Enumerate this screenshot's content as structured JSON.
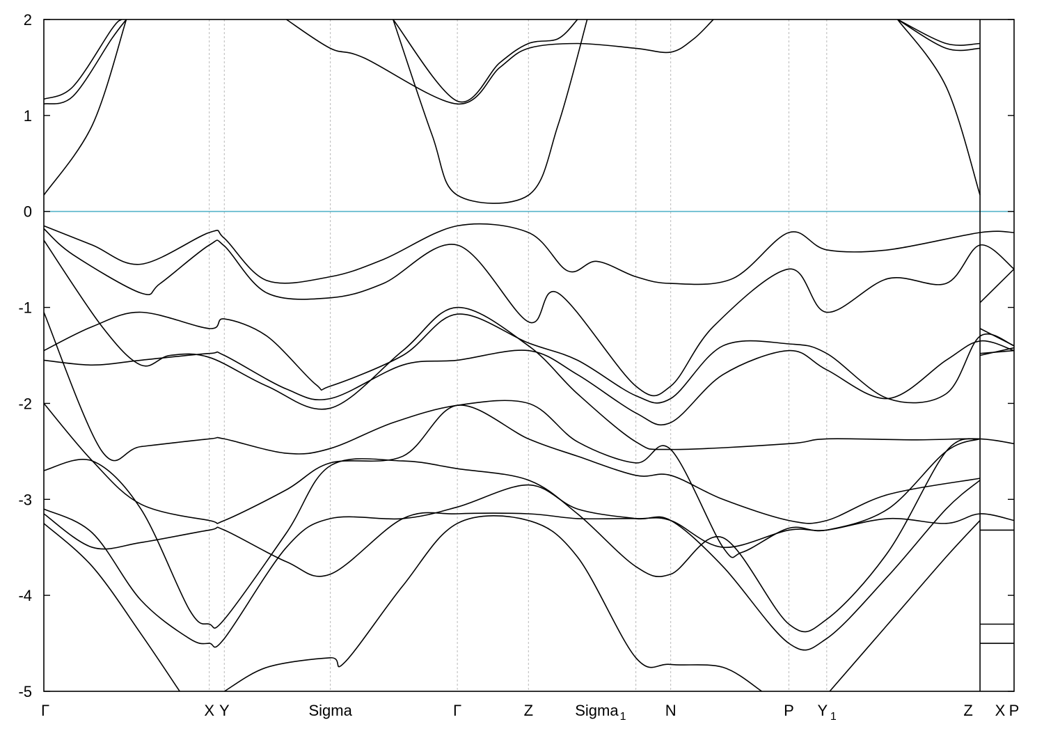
{
  "chart_data": {
    "type": "line",
    "title": "",
    "xlabel": "",
    "ylabel": "",
    "ylim": [
      -5,
      2
    ],
    "yticks": [
      2,
      1,
      0,
      -1,
      -2,
      -3,
      -4,
      -5
    ],
    "ytick_labels": [
      "2",
      "1",
      "0",
      "-1",
      "-2",
      "-3",
      "-4",
      "-5"
    ],
    "xlim": [
      0,
      1.0
    ],
    "x_high_symmetry_points": [
      {
        "label": "Γ",
        "sub": "",
        "x": 0.0
      },
      {
        "label": "X",
        "sub": "",
        "x": 0.1705
      },
      {
        "label": "Y",
        "sub": "",
        "x": 0.186
      },
      {
        "label": "Sigma",
        "sub": "",
        "x": 0.2953
      },
      {
        "label": "Γ",
        "sub": "",
        "x": 0.4262
      },
      {
        "label": "Z",
        "sub": "",
        "x": 0.4995
      },
      {
        "label": "Sigma",
        "sub": "1",
        "x": 0.6102
      },
      {
        "label": "N",
        "sub": "",
        "x": 0.6461
      },
      {
        "label": "P",
        "sub": "",
        "x": 0.7679
      },
      {
        "label": "Y",
        "sub": "1",
        "x": 0.8069
      },
      {
        "label": "Z",
        "sub": "",
        "x": 0.9649
      },
      {
        "label": "X",
        "sub": "",
        "x": 1.0
      },
      {
        "label": "P",
        "sub": "",
        "x": 1.0
      }
    ],
    "discontinuity_x": 0.9649,
    "fermi_level": 0,
    "grid": "vertical dashed lines at high-symmetry points",
    "legend": "none",
    "colors": {
      "bands": "#000000",
      "fermi": "#56b4c9"
    },
    "series": [
      {
        "values": [
          [
            0.0,
            -0.15
          ],
          [
            0.05,
            -0.35
          ],
          [
            0.1,
            -0.55
          ],
          [
            0.1705,
            -0.22
          ],
          [
            0.186,
            -0.28
          ],
          [
            0.23,
            -0.72
          ],
          [
            0.2953,
            -0.68
          ],
          [
            0.35,
            -0.5
          ],
          [
            0.4262,
            -0.15
          ],
          [
            0.4995,
            -0.22
          ],
          [
            0.54,
            -0.62
          ],
          [
            0.57,
            -0.52
          ],
          [
            0.6102,
            -0.68
          ],
          [
            0.6461,
            -0.75
          ],
          [
            0.71,
            -0.7
          ],
          [
            0.7679,
            -0.22
          ],
          [
            0.8069,
            -0.4
          ],
          [
            0.87,
            -0.4
          ],
          [
            0.9649,
            -0.22
          ],
          [
            1.0,
            -0.22
          ]
        ]
      },
      {
        "values": [
          [
            0.0,
            -0.18
          ],
          [
            0.03,
            -0.45
          ],
          [
            0.1,
            -0.85
          ],
          [
            0.12,
            -0.75
          ],
          [
            0.1705,
            -0.35
          ],
          [
            0.186,
            -0.36
          ],
          [
            0.23,
            -0.85
          ],
          [
            0.2953,
            -0.9
          ],
          [
            0.35,
            -0.75
          ],
          [
            0.4262,
            -0.35
          ],
          [
            0.4995,
            -1.15
          ],
          [
            0.53,
            -0.85
          ],
          [
            0.6102,
            -1.82
          ],
          [
            0.6461,
            -1.82
          ],
          [
            0.69,
            -1.2
          ],
          [
            0.7679,
            -0.6
          ],
          [
            0.8069,
            -1.05
          ],
          [
            0.87,
            -0.7
          ],
          [
            0.93,
            -0.75
          ],
          [
            0.9649,
            -0.35
          ],
          [
            1.0,
            -0.6
          ]
        ]
      },
      {
        "values": [
          [
            0.0,
            -0.3
          ],
          [
            0.06,
            -1.2
          ],
          [
            0.1,
            -1.6
          ],
          [
            0.13,
            -1.5
          ],
          [
            0.1705,
            -1.52
          ],
          [
            0.23,
            -1.82
          ],
          [
            0.2953,
            -2.05
          ],
          [
            0.37,
            -1.45
          ],
          [
            0.4262,
            -1.0
          ],
          [
            0.4995,
            -1.4
          ],
          [
            0.55,
            -1.9
          ],
          [
            0.6102,
            -2.4
          ],
          [
            0.6461,
            -2.48
          ],
          [
            0.7679,
            -2.42
          ],
          [
            0.8069,
            -2.37
          ],
          [
            0.9,
            -2.38
          ],
          [
            0.9649,
            -2.37
          ],
          [
            1.0,
            -2.42
          ]
        ]
      },
      {
        "values": [
          [
            0.0,
            -1.05
          ],
          [
            0.06,
            -2.5
          ],
          [
            0.1,
            -2.45
          ],
          [
            0.1705,
            -2.37
          ],
          [
            0.186,
            -2.37
          ],
          [
            0.25,
            -2.52
          ],
          [
            0.2953,
            -2.47
          ],
          [
            0.36,
            -2.2
          ],
          [
            0.4262,
            -2.02
          ],
          [
            0.4995,
            -2.0
          ],
          [
            0.55,
            -2.4
          ],
          [
            0.6102,
            -2.62
          ],
          [
            0.6461,
            -2.48
          ],
          [
            0.7,
            -3.5
          ],
          [
            0.72,
            -3.55
          ],
          [
            0.7679,
            -3.3
          ],
          [
            0.8069,
            -3.32
          ],
          [
            0.87,
            -3.1
          ],
          [
            0.93,
            -2.5
          ],
          [
            0.9649,
            -2.37
          ]
        ]
      },
      {
        "values": [
          [
            0.0,
            -1.45
          ],
          [
            0.05,
            -1.2
          ],
          [
            0.1,
            -1.05
          ],
          [
            0.1705,
            -1.22
          ],
          [
            0.186,
            -1.12
          ],
          [
            0.23,
            -1.3
          ],
          [
            0.28,
            -1.8
          ],
          [
            0.2953,
            -1.82
          ],
          [
            0.37,
            -1.5
          ],
          [
            0.4262,
            -1.07
          ],
          [
            0.4995,
            -1.37
          ],
          [
            0.55,
            -1.55
          ],
          [
            0.6102,
            -1.92
          ],
          [
            0.6461,
            -1.95
          ],
          [
            0.7,
            -1.4
          ],
          [
            0.7679,
            -1.38
          ],
          [
            0.8069,
            -1.48
          ],
          [
            0.87,
            -1.95
          ],
          [
            0.93,
            -1.9
          ],
          [
            0.9649,
            -1.3
          ],
          [
            1.0,
            -1.4
          ]
        ]
      },
      {
        "values": [
          [
            0.0,
            -1.55
          ],
          [
            0.05,
            -1.6
          ],
          [
            0.1,
            -1.55
          ],
          [
            0.1705,
            -1.48
          ],
          [
            0.186,
            -1.5
          ],
          [
            0.25,
            -1.85
          ],
          [
            0.2953,
            -1.95
          ],
          [
            0.37,
            -1.6
          ],
          [
            0.4262,
            -1.55
          ],
          [
            0.4995,
            -1.45
          ],
          [
            0.55,
            -1.7
          ],
          [
            0.6102,
            -2.1
          ],
          [
            0.6461,
            -2.2
          ],
          [
            0.7,
            -1.7
          ],
          [
            0.7679,
            -1.45
          ],
          [
            0.8069,
            -1.65
          ],
          [
            0.87,
            -1.95
          ],
          [
            0.93,
            -1.55
          ],
          [
            0.9649,
            -1.35
          ],
          [
            1.0,
            -1.45
          ]
        ]
      },
      {
        "values": [
          [
            0.0,
            -2.0
          ],
          [
            0.05,
            -2.6
          ],
          [
            0.1,
            -3.05
          ],
          [
            0.1705,
            -3.22
          ],
          [
            0.186,
            -3.22
          ],
          [
            0.25,
            -2.9
          ],
          [
            0.2953,
            -2.62
          ],
          [
            0.37,
            -2.55
          ],
          [
            0.4262,
            -2.02
          ],
          [
            0.4995,
            -2.37
          ],
          [
            0.55,
            -2.55
          ],
          [
            0.6102,
            -2.75
          ],
          [
            0.6461,
            -2.75
          ],
          [
            0.7,
            -3.0
          ],
          [
            0.7679,
            -3.22
          ],
          [
            0.8069,
            -3.22
          ],
          [
            0.87,
            -2.95
          ],
          [
            0.9649,
            -2.78
          ]
        ]
      },
      {
        "values": [
          [
            0.0,
            -2.7
          ],
          [
            0.05,
            -2.6
          ],
          [
            0.1,
            -3.1
          ],
          [
            0.15,
            -4.15
          ],
          [
            0.1705,
            -4.3
          ],
          [
            0.186,
            -4.25
          ],
          [
            0.25,
            -3.35
          ],
          [
            0.2953,
            -2.65
          ],
          [
            0.37,
            -2.6
          ],
          [
            0.4262,
            -2.68
          ],
          [
            0.4995,
            -2.8
          ],
          [
            0.55,
            -3.15
          ],
          [
            0.6102,
            -3.7
          ],
          [
            0.6461,
            -3.78
          ],
          [
            0.7,
            -3.4
          ],
          [
            0.7679,
            -4.3
          ],
          [
            0.8069,
            -4.25
          ],
          [
            0.87,
            -3.55
          ],
          [
            0.93,
            -2.5
          ],
          [
            0.9649,
            -2.37
          ]
        ]
      },
      {
        "values": [
          [
            0.0,
            -3.1
          ],
          [
            0.05,
            -3.35
          ],
          [
            0.1,
            -4.05
          ],
          [
            0.15,
            -4.45
          ],
          [
            0.1705,
            -4.5
          ],
          [
            0.186,
            -4.45
          ],
          [
            0.25,
            -3.5
          ],
          [
            0.2953,
            -3.2
          ],
          [
            0.37,
            -3.2
          ],
          [
            0.4262,
            -3.08
          ],
          [
            0.4995,
            -2.85
          ],
          [
            0.55,
            -3.1
          ],
          [
            0.6102,
            -3.2
          ],
          [
            0.6461,
            -3.22
          ],
          [
            0.7,
            -3.7
          ],
          [
            0.7679,
            -4.5
          ],
          [
            0.8069,
            -4.45
          ],
          [
            0.87,
            -3.8
          ],
          [
            0.93,
            -3.1
          ],
          [
            0.9649,
            -2.8
          ]
        ]
      },
      {
        "values": [
          [
            0.0,
            -3.15
          ],
          [
            0.05,
            -3.5
          ],
          [
            0.1,
            -3.45
          ],
          [
            0.1705,
            -3.32
          ],
          [
            0.186,
            -3.32
          ],
          [
            0.25,
            -3.65
          ],
          [
            0.2953,
            -3.78
          ],
          [
            0.37,
            -3.2
          ],
          [
            0.4262,
            -3.15
          ],
          [
            0.4995,
            -3.15
          ],
          [
            0.55,
            -3.2
          ],
          [
            0.6102,
            -3.2
          ],
          [
            0.6461,
            -3.22
          ],
          [
            0.7,
            -3.5
          ],
          [
            0.7679,
            -3.32
          ],
          [
            0.8069,
            -3.32
          ],
          [
            0.87,
            -3.2
          ],
          [
            0.93,
            -3.25
          ],
          [
            0.9649,
            -3.15
          ],
          [
            1.0,
            -3.22
          ]
        ]
      },
      {
        "values": [
          [
            0.0,
            -3.25
          ],
          [
            0.05,
            -3.7
          ],
          [
            0.1,
            -4.4
          ],
          [
            0.14,
            -5.0
          ]
        ]
      },
      {
        "values": [
          [
            0.186,
            -5.0
          ],
          [
            0.23,
            -4.75
          ],
          [
            0.2953,
            -4.65
          ],
          [
            0.31,
            -4.7
          ],
          [
            0.37,
            -3.9
          ],
          [
            0.4262,
            -3.25
          ],
          [
            0.4995,
            -3.22
          ],
          [
            0.55,
            -3.6
          ],
          [
            0.6102,
            -4.65
          ],
          [
            0.6461,
            -4.72
          ],
          [
            0.7,
            -4.75
          ],
          [
            0.74,
            -5.0
          ]
        ]
      },
      {
        "values": [
          [
            0.81,
            -5.0
          ],
          [
            0.87,
            -4.3
          ],
          [
            0.93,
            -3.6
          ],
          [
            0.9649,
            -3.22
          ]
        ]
      },
      {
        "values": [
          [
            0.0,
            0.17
          ],
          [
            0.05,
            0.9
          ],
          [
            0.085,
            2.0
          ]
        ]
      },
      {
        "values": [
          [
            0.0,
            1.12
          ],
          [
            0.03,
            1.2
          ],
          [
            0.07,
            1.8
          ],
          [
            0.085,
            2.0
          ]
        ]
      },
      {
        "values": [
          [
            0.0,
            1.17
          ],
          [
            0.03,
            1.3
          ],
          [
            0.07,
            1.9
          ],
          [
            0.08,
            2.0
          ]
        ]
      },
      {
        "values": [
          [
            0.25,
            2.0
          ],
          [
            0.2953,
            1.7
          ],
          [
            0.33,
            1.6
          ],
          [
            0.4262,
            1.12
          ],
          [
            0.47,
            1.5
          ],
          [
            0.4995,
            1.7
          ],
          [
            0.55,
            1.75
          ],
          [
            0.6102,
            1.7
          ],
          [
            0.6461,
            1.66
          ],
          [
            0.67,
            1.8
          ],
          [
            0.69,
            2.0
          ]
        ]
      },
      {
        "values": [
          [
            0.36,
            2.0
          ],
          [
            0.4262,
            1.15
          ],
          [
            0.47,
            1.55
          ],
          [
            0.4995,
            1.75
          ],
          [
            0.53,
            1.8
          ],
          [
            0.55,
            2.0
          ]
        ]
      },
      {
        "values": [
          [
            0.36,
            2.0
          ],
          [
            0.4,
            0.8
          ],
          [
            0.4262,
            0.17
          ],
          [
            0.4995,
            0.17
          ],
          [
            0.53,
            0.9
          ],
          [
            0.56,
            2.0
          ]
        ]
      },
      {
        "values": [
          [
            0.88,
            2.0
          ],
          [
            0.93,
            1.3
          ],
          [
            0.9649,
            0.17
          ]
        ]
      },
      {
        "values": [
          [
            0.88,
            2.0
          ],
          [
            0.93,
            1.75
          ],
          [
            0.9649,
            1.75
          ]
        ]
      },
      {
        "values": [
          [
            0.88,
            2.0
          ],
          [
            0.93,
            1.7
          ],
          [
            0.9649,
            1.7
          ]
        ]
      },
      {
        "values": [
          [
            0.9649,
            -0.95
          ],
          [
            1.0,
            -0.6
          ]
        ]
      },
      {
        "values": [
          [
            0.9649,
            -1.22
          ],
          [
            1.0,
            -1.4
          ]
        ]
      },
      {
        "values": [
          [
            0.9649,
            -1.5
          ],
          [
            1.0,
            -1.42
          ]
        ]
      },
      {
        "values": [
          [
            0.9649,
            -1.48
          ],
          [
            1.0,
            -1.45
          ]
        ]
      },
      {
        "values": [
          [
            0.9649,
            -3.32
          ],
          [
            1.0,
            -3.32
          ]
        ]
      },
      {
        "values": [
          [
            0.9649,
            -4.3
          ],
          [
            1.0,
            -4.3
          ]
        ]
      },
      {
        "values": [
          [
            0.9649,
            -4.5
          ],
          [
            1.0,
            -4.5
          ]
        ]
      }
    ]
  }
}
